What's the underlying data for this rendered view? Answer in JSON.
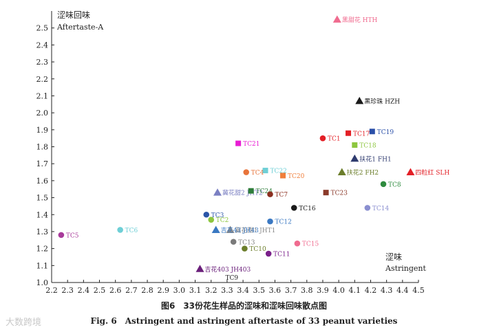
{
  "chart_data": {
    "type": "scatter",
    "title": "",
    "xlabel": "涩味",
    "xlabel_en": "Astringent",
    "ylabel": "涩味回味",
    "ylabel_en": "Aftertaste-A",
    "xlim": [
      2.2,
      4.5
    ],
    "ylim": [
      1.0,
      2.6
    ],
    "xticks": [
      "2.2",
      "2.3",
      "2.4",
      "2.5",
      "2.6",
      "2.7",
      "2.8",
      "2.9",
      "3.0",
      "3.1",
      "3.2",
      "3.3",
      "3.4",
      "3.5",
      "3.6",
      "3.7",
      "3.8",
      "3.9",
      "4.0",
      "4.1",
      "4.2",
      "4.3",
      "4.4",
      "4.5"
    ],
    "yticks": [
      "1.0",
      "1.1",
      "1.2",
      "1.3",
      "1.4",
      "1.5",
      "1.6",
      "1.7",
      "1.8",
      "1.9",
      "2.0",
      "2.1",
      "2.2",
      "2.3",
      "2.4",
      "2.5"
    ],
    "grid": false,
    "points": [
      {
        "label": "黑甜花 HTH",
        "x": 3.99,
        "y": 2.55,
        "shape": "triangle",
        "color": "#f06b8f"
      },
      {
        "label": "黑珍珠 HZH",
        "x": 4.13,
        "y": 2.07,
        "shape": "triangle",
        "color": "#1a1a1a"
      },
      {
        "label": "TC19",
        "x": 4.21,
        "y": 1.89,
        "shape": "square",
        "color": "#2a4fa8"
      },
      {
        "label": "TC17",
        "x": 4.06,
        "y": 1.88,
        "shape": "square",
        "color": "#e31f26"
      },
      {
        "label": "TC1",
        "x": 3.9,
        "y": 1.85,
        "shape": "circle",
        "color": "#e31f26"
      },
      {
        "label": "TC18",
        "x": 4.1,
        "y": 1.81,
        "shape": "square",
        "color": "#8dc63f"
      },
      {
        "label": "TC21",
        "x": 3.37,
        "y": 1.82,
        "shape": "square",
        "color": "#e81cd3"
      },
      {
        "label": "扶花1 FH1",
        "x": 4.1,
        "y": 1.73,
        "shape": "triangle",
        "color": "#2e3a6e"
      },
      {
        "label": "TC4",
        "x": 3.42,
        "y": 1.65,
        "shape": "circle",
        "color": "#e8743b"
      },
      {
        "label": "TC22",
        "x": 3.54,
        "y": 1.66,
        "shape": "square",
        "color": "#6ecfd6"
      },
      {
        "label": "TC20",
        "x": 3.65,
        "y": 1.63,
        "shape": "square",
        "color": "#f07f3c"
      },
      {
        "label": "扶花2 FH2",
        "x": 4.02,
        "y": 1.65,
        "shape": "triangle",
        "color": "#6b7d2a"
      },
      {
        "label": "四粒红 SLH",
        "x": 4.45,
        "y": 1.65,
        "shape": "triangle",
        "color": "#e31f26"
      },
      {
        "label": "TC8",
        "x": 4.28,
        "y": 1.58,
        "shape": "circle",
        "color": "#2e8b3e"
      },
      {
        "label": "冀花甜2 JHT2",
        "x": 3.24,
        "y": 1.53,
        "shape": "triangle",
        "color": "#7a7fc2"
      },
      {
        "label": "TC24",
        "x": 3.45,
        "y": 1.54,
        "shape": "square",
        "color": "#2e7d3a"
      },
      {
        "label": "TC7",
        "x": 3.57,
        "y": 1.52,
        "shape": "circle",
        "color": "#8b2e1f"
      },
      {
        "label": "TC23",
        "x": 3.92,
        "y": 1.53,
        "shape": "square",
        "color": "#8b3a2a"
      },
      {
        "label": "TC16",
        "x": 3.72,
        "y": 1.44,
        "shape": "circle",
        "color": "#1a1a1a"
      },
      {
        "label": "TC14",
        "x": 4.18,
        "y": 1.44,
        "shape": "circle",
        "color": "#8a8fd0"
      },
      {
        "label": "TC3",
        "x": 3.17,
        "y": 1.4,
        "shape": "circle",
        "color": "#2a55a8"
      },
      {
        "label": "TC2",
        "x": 3.2,
        "y": 1.37,
        "shape": "circle",
        "color": "#8dc63f"
      },
      {
        "label": "TC12",
        "x": 3.57,
        "y": 1.36,
        "shape": "circle",
        "color": "#3a78c2"
      },
      {
        "label": "TC6",
        "x": 2.63,
        "y": 1.31,
        "shape": "circle",
        "color": "#6ecfd6"
      },
      {
        "label": "冀花甜1 JHT1",
        "x": 3.32,
        "y": 1.31,
        "shape": "triangle",
        "color": "#8a8a8a"
      },
      {
        "label": "吉花43 JH43",
        "x": 3.23,
        "y": 1.31,
        "shape": "triangle",
        "color": "#3a78c2"
      },
      {
        "label": "TC5",
        "x": 2.26,
        "y": 1.28,
        "shape": "circle",
        "color": "#a83a9a"
      },
      {
        "label": "TC13",
        "x": 3.34,
        "y": 1.24,
        "shape": "circle",
        "color": "#7a7a7a"
      },
      {
        "label": "TC15",
        "x": 3.74,
        "y": 1.23,
        "shape": "circle",
        "color": "#f06b8f"
      },
      {
        "label": "TC10",
        "x": 3.41,
        "y": 1.2,
        "shape": "circle",
        "color": "#6b7d2a"
      },
      {
        "label": "TC11",
        "x": 3.56,
        "y": 1.17,
        "shape": "circle",
        "color": "#7a1f8a"
      },
      {
        "label": "吉花403 JH403",
        "x": 3.13,
        "y": 1.08,
        "shape": "triangle",
        "color": "#6a1f7a"
      },
      {
        "label": "TC9",
        "x": 3.33,
        "y": 1.03,
        "shape": "none",
        "color": "#222222"
      }
    ]
  },
  "caption": {
    "zh": "图6　33份花生样品的涩味和涩味回味散点图",
    "en": "Fig. 6　Astringent and astringent aftertaste of 33 peanut varieties"
  },
  "watermark": "大数跨境"
}
